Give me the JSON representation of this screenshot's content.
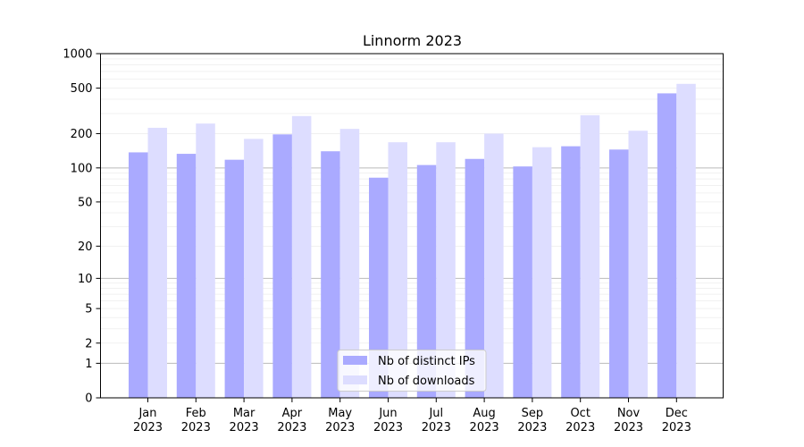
{
  "chart_data": {
    "type": "bar",
    "title": "Linnorm 2023",
    "xlabel": "",
    "ylabel": "",
    "scale": "symlog",
    "ylim": [
      0,
      1000
    ],
    "categories": [
      [
        "Jan",
        "2023"
      ],
      [
        "Feb",
        "2023"
      ],
      [
        "Mar",
        "2023"
      ],
      [
        "Apr",
        "2023"
      ],
      [
        "May",
        "2023"
      ],
      [
        "Jun",
        "2023"
      ],
      [
        "Jul",
        "2023"
      ],
      [
        "Aug",
        "2023"
      ],
      [
        "Sep",
        "2023"
      ],
      [
        "Oct",
        "2023"
      ],
      [
        "Nov",
        "2023"
      ],
      [
        "Dec",
        "2023"
      ]
    ],
    "yticks": [
      0,
      1,
      2,
      5,
      10,
      20,
      50,
      100,
      200,
      500,
      1000
    ],
    "series": [
      {
        "name": "Nb of distinct IPs",
        "color": "#aaaaff",
        "values": [
          137,
          133,
          118,
          197,
          140,
          82,
          106,
          120,
          103,
          155,
          145,
          450
        ]
      },
      {
        "name": "Nb of downloads",
        "color": "#ddddff",
        "values": [
          225,
          245,
          180,
          285,
          220,
          168,
          168,
          200,
          152,
          290,
          212,
          545
        ]
      }
    ],
    "grid": true,
    "legend": "bottom-center"
  }
}
